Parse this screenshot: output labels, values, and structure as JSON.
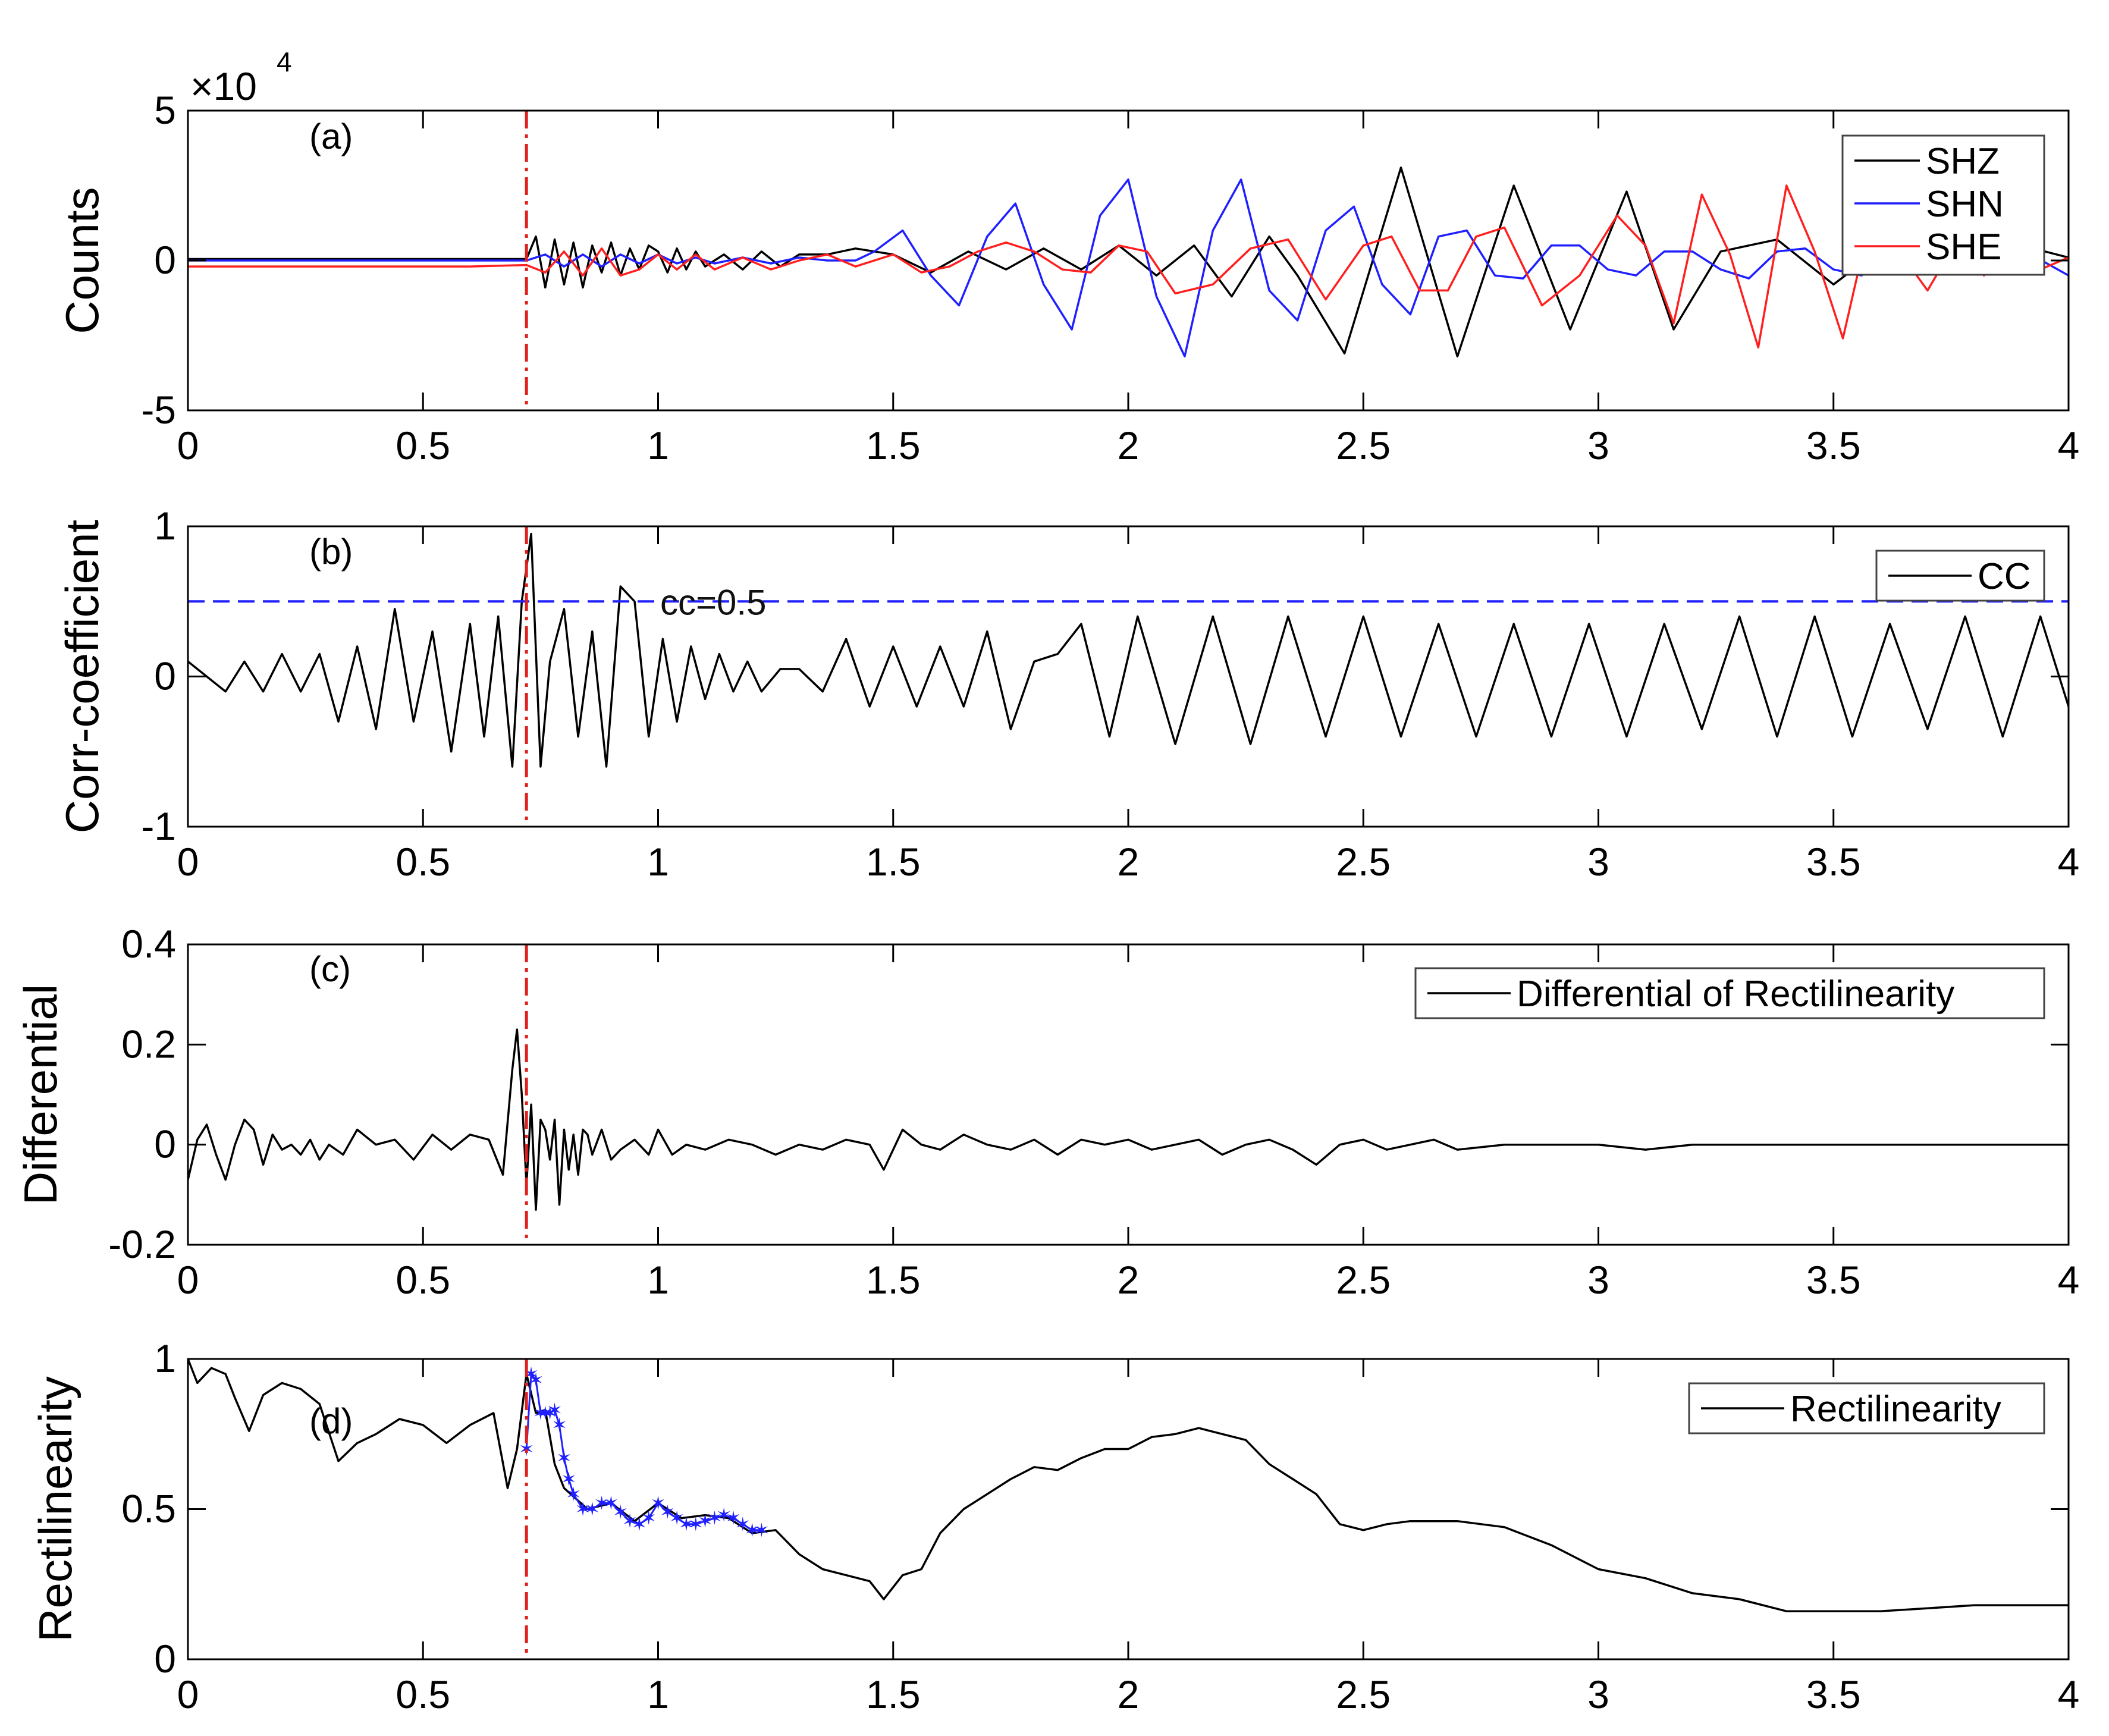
{
  "figure": {
    "xticks": [
      0,
      0.5,
      1,
      1.5,
      2,
      2.5,
      3,
      3.5,
      4
    ],
    "xtick_labels": [
      "0",
      "0.5",
      "1",
      "1.5",
      "2",
      "2.5",
      "3",
      "3.5",
      "4"
    ],
    "onset_marker_x": 0.72,
    "onset_marker_color": "#e0201c"
  },
  "chart_data": [
    {
      "panel": "(a)",
      "type": "line",
      "ylabel": "Counts",
      "y_multiplier": "×10",
      "y_multiplier_exponent": "4",
      "xlim": [
        0,
        4
      ],
      "ylim": [
        -5,
        5
      ],
      "yticks": [
        -5,
        0,
        5
      ],
      "ytick_labels": [
        "-5",
        "0",
        "5"
      ],
      "legend": "top-right",
      "series": [
        {
          "name": "SHZ",
          "color": "#000000",
          "x": [
            0,
            0.1,
            0.2,
            0.3,
            0.4,
            0.5,
            0.6,
            0.7,
            0.72,
            0.74,
            0.76,
            0.78,
            0.8,
            0.82,
            0.84,
            0.86,
            0.88,
            0.9,
            0.92,
            0.94,
            0.96,
            0.98,
            1.0,
            1.02,
            1.04,
            1.06,
            1.08,
            1.1,
            1.14,
            1.18,
            1.22,
            1.26,
            1.3,
            1.36,
            1.42,
            1.5,
            1.58,
            1.66,
            1.74,
            1.82,
            1.9,
            1.98,
            2.06,
            2.14,
            2.22,
            2.3,
            2.36,
            2.46,
            2.58,
            2.7,
            2.82,
            2.94,
            3.06,
            3.16,
            3.26,
            3.38,
            3.5,
            3.6,
            3.7,
            3.8,
            3.9,
            4.0
          ],
          "y": [
            0.05,
            0.05,
            0.05,
            0.05,
            0.05,
            0.05,
            0.05,
            0.05,
            0.05,
            0.8,
            -0.9,
            0.7,
            -0.8,
            0.6,
            -0.9,
            0.5,
            -0.4,
            0.6,
            -0.5,
            0.4,
            -0.3,
            0.5,
            0.3,
            -0.4,
            0.4,
            -0.3,
            0.3,
            -0.2,
            0.2,
            -0.3,
            0.3,
            -0.2,
            0.2,
            0.2,
            0.4,
            0.2,
            -0.4,
            0.3,
            -0.3,
            0.4,
            -0.3,
            0.5,
            -0.5,
            0.5,
            -1.2,
            0.8,
            -0.5,
            -3.1,
            3.1,
            -3.2,
            2.5,
            -2.3,
            2.3,
            -2.3,
            0.3,
            0.7,
            -0.8,
            0.4,
            0.3,
            -0.4,
            0.5,
            0.1
          ]
        },
        {
          "name": "SHN",
          "color": "#1f1fff",
          "x": [
            0,
            0.2,
            0.4,
            0.6,
            0.72,
            0.76,
            0.8,
            0.84,
            0.88,
            0.92,
            0.96,
            1.0,
            1.04,
            1.08,
            1.12,
            1.18,
            1.24,
            1.3,
            1.36,
            1.42,
            1.46,
            1.52,
            1.58,
            1.64,
            1.7,
            1.76,
            1.82,
            1.88,
            1.94,
            2.0,
            2.06,
            2.12,
            2.18,
            2.24,
            2.3,
            2.36,
            2.42,
            2.48,
            2.54,
            2.6,
            2.66,
            2.72,
            2.78,
            2.84,
            2.9,
            2.96,
            3.02,
            3.08,
            3.14,
            3.2,
            3.26,
            3.32,
            3.38,
            3.44,
            3.5,
            3.56,
            3.62,
            3.68,
            3.74,
            3.8,
            3.86,
            3.92,
            4.0
          ],
          "y": [
            0,
            0,
            0,
            0,
            0,
            0.2,
            -0.2,
            0.2,
            -0.2,
            0.2,
            -0.1,
            0.2,
            -0.1,
            0.1,
            -0.1,
            0.1,
            -0.1,
            0.1,
            0,
            0,
            0.3,
            1.0,
            -0.5,
            -1.5,
            0.8,
            1.9,
            -0.8,
            -2.3,
            1.5,
            2.7,
            -1.2,
            -3.2,
            1.0,
            2.7,
            -1.0,
            -2.0,
            1.0,
            1.8,
            -0.8,
            -1.8,
            0.8,
            1.0,
            -0.5,
            -0.6,
            0.5,
            0.5,
            -0.3,
            -0.5,
            0.3,
            0.3,
            -0.3,
            -0.6,
            0.3,
            0.4,
            -0.3,
            -0.5,
            0.3,
            0.4,
            -0.2,
            -0.3,
            0.2,
            0.2,
            -0.5
          ]
        },
        {
          "name": "SHE",
          "color": "#ff1f1f",
          "x": [
            0,
            0.2,
            0.4,
            0.6,
            0.72,
            0.76,
            0.8,
            0.84,
            0.88,
            0.92,
            0.96,
            1.0,
            1.04,
            1.08,
            1.12,
            1.18,
            1.24,
            1.3,
            1.36,
            1.42,
            1.5,
            1.56,
            1.62,
            1.68,
            1.74,
            1.8,
            1.86,
            1.92,
            1.98,
            2.04,
            2.1,
            2.18,
            2.26,
            2.34,
            2.42,
            2.5,
            2.56,
            2.62,
            2.68,
            2.74,
            2.8,
            2.88,
            2.96,
            3.04,
            3.1,
            3.16,
            3.22,
            3.28,
            3.34,
            3.4,
            3.46,
            3.52,
            3.58,
            3.64,
            3.7,
            3.76,
            3.82,
            3.88,
            3.94,
            4.0
          ],
          "y": [
            -0.2,
            -0.2,
            -0.2,
            -0.2,
            -0.15,
            -0.4,
            0.3,
            -0.5,
            0.4,
            -0.5,
            -0.3,
            0.2,
            -0.3,
            0.2,
            -0.3,
            0.1,
            -0.3,
            0.0,
            0.2,
            -0.2,
            0.2,
            -0.4,
            -0.2,
            0.3,
            0.6,
            0.3,
            -0.3,
            -0.4,
            0.5,
            0.3,
            -1.1,
            -0.8,
            0.4,
            0.7,
            -1.3,
            0.5,
            0.8,
            -1.0,
            -1.0,
            0.8,
            1.1,
            -1.5,
            -0.5,
            1.5,
            0.5,
            -2.1,
            2.2,
            0.2,
            -2.9,
            2.5,
            0.3,
            -2.6,
            1.5,
            0.3,
            -1.0,
            0.6,
            -0.5,
            0.2,
            -0.3,
            0.1
          ]
        }
      ]
    },
    {
      "panel": "(b)",
      "type": "line",
      "ylabel": "Corr-coefficient",
      "xlim": [
        0,
        4
      ],
      "ylim": [
        -1,
        1
      ],
      "yticks": [
        -1,
        0,
        1
      ],
      "ytick_labels": [
        "-1",
        "0",
        "1"
      ],
      "legend": "top-right",
      "threshold": {
        "y": 0.5,
        "label": "cc=0.5",
        "color": "#1f1fff"
      },
      "series": [
        {
          "name": "CC",
          "color": "#000000",
          "x": [
            0,
            0.04,
            0.08,
            0.12,
            0.16,
            0.2,
            0.24,
            0.28,
            0.32,
            0.36,
            0.4,
            0.44,
            0.48,
            0.52,
            0.56,
            0.6,
            0.63,
            0.66,
            0.69,
            0.71,
            0.73,
            0.75,
            0.77,
            0.8,
            0.83,
            0.86,
            0.89,
            0.92,
            0.95,
            0.98,
            1.01,
            1.04,
            1.07,
            1.1,
            1.13,
            1.16,
            1.19,
            1.22,
            1.26,
            1.3,
            1.35,
            1.4,
            1.45,
            1.5,
            1.55,
            1.6,
            1.65,
            1.7,
            1.75,
            1.8,
            1.85,
            1.9,
            1.96,
            2.02,
            2.1,
            2.18,
            2.26,
            2.34,
            2.42,
            2.5,
            2.58,
            2.66,
            2.74,
            2.82,
            2.9,
            2.98,
            3.06,
            3.14,
            3.22,
            3.3,
            3.38,
            3.46,
            3.54,
            3.62,
            3.7,
            3.78,
            3.86,
            3.94,
            4.0
          ],
          "y": [
            0.1,
            0.0,
            -0.1,
            0.1,
            -0.1,
            0.15,
            -0.1,
            0.15,
            -0.3,
            0.2,
            -0.35,
            0.45,
            -0.3,
            0.3,
            -0.5,
            0.35,
            -0.4,
            0.4,
            -0.6,
            0.5,
            0.95,
            -0.6,
            0.1,
            0.45,
            -0.4,
            0.3,
            -0.6,
            0.6,
            0.5,
            -0.4,
            0.25,
            -0.3,
            0.2,
            -0.15,
            0.15,
            -0.1,
            0.1,
            -0.1,
            0.05,
            0.05,
            -0.1,
            0.25,
            -0.2,
            0.2,
            -0.2,
            0.2,
            -0.2,
            0.3,
            -0.35,
            0.1,
            0.15,
            0.35,
            -0.4,
            0.4,
            -0.45,
            0.4,
            -0.45,
            0.4,
            -0.4,
            0.4,
            -0.4,
            0.35,
            -0.4,
            0.35,
            -0.4,
            0.35,
            -0.4,
            0.35,
            -0.35,
            0.4,
            -0.4,
            0.4,
            -0.4,
            0.35,
            -0.35,
            0.4,
            -0.4,
            0.4,
            -0.2
          ]
        }
      ]
    },
    {
      "panel": "(c)",
      "type": "line",
      "ylabel": "Differential",
      "xlim": [
        0,
        4
      ],
      "ylim": [
        -0.2,
        0.4
      ],
      "yticks": [
        -0.2,
        0,
        0.2,
        0.4
      ],
      "ytick_labels": [
        "-0.2",
        "0",
        "0.2",
        "0.4"
      ],
      "legend": "top-right",
      "series": [
        {
          "name": "Differential of Rectilinearity",
          "color": "#000000",
          "x": [
            0,
            0.02,
            0.04,
            0.06,
            0.08,
            0.1,
            0.12,
            0.14,
            0.16,
            0.18,
            0.2,
            0.22,
            0.24,
            0.26,
            0.28,
            0.3,
            0.33,
            0.36,
            0.4,
            0.44,
            0.48,
            0.52,
            0.56,
            0.6,
            0.64,
            0.67,
            0.69,
            0.7,
            0.71,
            0.72,
            0.73,
            0.74,
            0.75,
            0.76,
            0.77,
            0.78,
            0.79,
            0.8,
            0.81,
            0.82,
            0.83,
            0.84,
            0.85,
            0.86,
            0.88,
            0.9,
            0.92,
            0.95,
            0.98,
            1.0,
            1.03,
            1.06,
            1.1,
            1.15,
            1.2,
            1.25,
            1.3,
            1.35,
            1.4,
            1.45,
            1.48,
            1.52,
            1.56,
            1.6,
            1.65,
            1.7,
            1.75,
            1.8,
            1.85,
            1.9,
            1.95,
            2.0,
            2.05,
            2.1,
            2.15,
            2.2,
            2.25,
            2.3,
            2.35,
            2.4,
            2.45,
            2.5,
            2.55,
            2.6,
            2.65,
            2.7,
            2.8,
            2.9,
            3.0,
            3.1,
            3.2,
            3.3,
            3.4,
            3.5,
            3.6,
            3.7,
            3.8,
            3.9,
            4.0
          ],
          "y": [
            -0.07,
            0.01,
            0.04,
            -0.02,
            -0.07,
            0.0,
            0.05,
            0.03,
            -0.04,
            0.02,
            -0.01,
            0.0,
            -0.02,
            0.01,
            -0.03,
            0.0,
            -0.02,
            0.03,
            0.0,
            0.01,
            -0.03,
            0.02,
            -0.01,
            0.02,
            0.01,
            -0.06,
            0.15,
            0.23,
            0.1,
            -0.08,
            0.08,
            -0.13,
            0.05,
            0.03,
            -0.03,
            0.05,
            -0.12,
            0.03,
            -0.05,
            0.02,
            -0.06,
            0.03,
            0.02,
            -0.02,
            0.03,
            -0.03,
            -0.01,
            0.01,
            -0.02,
            0.03,
            -0.02,
            0.0,
            -0.01,
            0.01,
            0.0,
            -0.02,
            0.0,
            -0.01,
            0.01,
            0.0,
            -0.05,
            0.03,
            0.0,
            -0.01,
            0.02,
            0.0,
            -0.01,
            0.01,
            -0.02,
            0.01,
            0.0,
            0.01,
            -0.01,
            0.0,
            0.01,
            -0.02,
            0.0,
            0.01,
            -0.01,
            -0.04,
            0.0,
            0.01,
            -0.01,
            0.0,
            0.01,
            -0.01,
            0.0,
            0.0,
            0.0,
            -0.01,
            0.0,
            0.0,
            0.0,
            0.0,
            0.0,
            0.0,
            0.0,
            0.0,
            0.0
          ]
        }
      ]
    },
    {
      "panel": "(d)",
      "type": "line",
      "ylabel": "Rectilinearity",
      "xlim": [
        0,
        4
      ],
      "ylim": [
        0,
        1
      ],
      "yticks": [
        0,
        0.5,
        1
      ],
      "ytick_labels": [
        "0",
        "0.5",
        "1"
      ],
      "legend": "top-right",
      "series": [
        {
          "name": "Rectilinearity",
          "color": "#000000",
          "x": [
            0,
            0.02,
            0.05,
            0.08,
            0.1,
            0.13,
            0.16,
            0.2,
            0.24,
            0.28,
            0.32,
            0.36,
            0.4,
            0.45,
            0.5,
            0.55,
            0.6,
            0.65,
            0.68,
            0.7,
            0.72,
            0.74,
            0.76,
            0.78,
            0.8,
            0.85,
            0.9,
            0.95,
            1.0,
            1.05,
            1.1,
            1.15,
            1.2,
            1.25,
            1.3,
            1.35,
            1.4,
            1.45,
            1.48,
            1.52,
            1.56,
            1.6,
            1.65,
            1.7,
            1.75,
            1.8,
            1.85,
            1.9,
            1.95,
            2.0,
            2.05,
            2.1,
            2.15,
            2.2,
            2.25,
            2.3,
            2.35,
            2.4,
            2.45,
            2.5,
            2.55,
            2.6,
            2.7,
            2.8,
            2.9,
            3.0,
            3.1,
            3.2,
            3.3,
            3.4,
            3.5,
            3.6,
            3.7,
            3.8,
            3.9,
            4.0
          ],
          "y": [
            1.0,
            0.92,
            0.97,
            0.95,
            0.87,
            0.76,
            0.88,
            0.92,
            0.9,
            0.85,
            0.66,
            0.72,
            0.75,
            0.8,
            0.78,
            0.72,
            0.78,
            0.82,
            0.57,
            0.7,
            0.95,
            0.82,
            0.83,
            0.65,
            0.57,
            0.5,
            0.52,
            0.46,
            0.52,
            0.47,
            0.48,
            0.47,
            0.42,
            0.43,
            0.35,
            0.3,
            0.28,
            0.26,
            0.2,
            0.28,
            0.3,
            0.42,
            0.5,
            0.55,
            0.6,
            0.64,
            0.63,
            0.67,
            0.7,
            0.7,
            0.74,
            0.75,
            0.77,
            0.75,
            0.73,
            0.65,
            0.6,
            0.55,
            0.45,
            0.43,
            0.45,
            0.46,
            0.46,
            0.44,
            0.38,
            0.3,
            0.27,
            0.22,
            0.2,
            0.16,
            0.16,
            0.16,
            0.17,
            0.18,
            0.18,
            0.18
          ]
        },
        {
          "name": "",
          "color": "#1f1fff",
          "marker": "star",
          "x": [
            0.72,
            0.73,
            0.74,
            0.75,
            0.76,
            0.77,
            0.78,
            0.79,
            0.8,
            0.81,
            0.82,
            0.84,
            0.86,
            0.88,
            0.9,
            0.92,
            0.94,
            0.96,
            0.98,
            1.0,
            1.02,
            1.04,
            1.06,
            1.08,
            1.1,
            1.12,
            1.14,
            1.16,
            1.18,
            1.2,
            1.22
          ],
          "y": [
            0.7,
            0.95,
            0.93,
            0.82,
            0.82,
            0.82,
            0.83,
            0.78,
            0.67,
            0.6,
            0.55,
            0.5,
            0.5,
            0.52,
            0.52,
            0.49,
            0.46,
            0.45,
            0.47,
            0.52,
            0.49,
            0.47,
            0.45,
            0.45,
            0.46,
            0.47,
            0.48,
            0.47,
            0.45,
            0.43,
            0.43
          ]
        }
      ]
    }
  ],
  "panel_labels": [
    "(a)",
    "(b)",
    "(c)",
    "(d)"
  ]
}
